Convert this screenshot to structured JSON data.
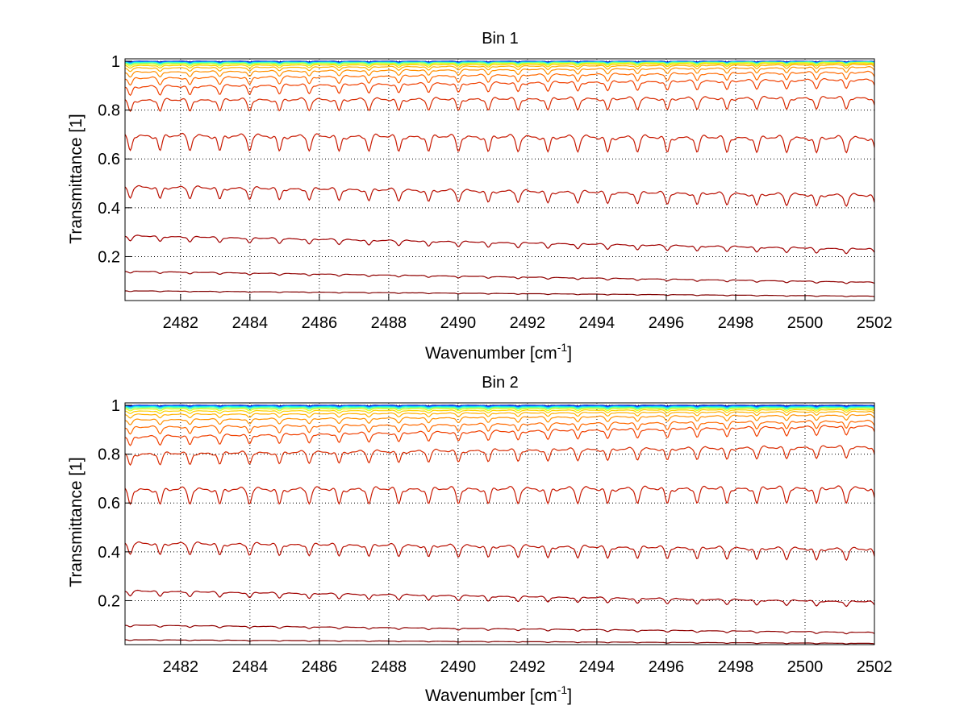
{
  "chart_data": [
    {
      "type": "line",
      "title": "Bin 1",
      "xlabel": "Wavenumber [cm",
      "xlabel_sup": "-1",
      "xlabel_end": "]",
      "ylabel": "Transmittance [1]",
      "xlim": [
        2480.4,
        2502
      ],
      "ylim": [
        0.02,
        1.01
      ],
      "grid": true,
      "xticks": [
        2482,
        2484,
        2486,
        2488,
        2490,
        2492,
        2494,
        2496,
        2498,
        2500,
        2502
      ],
      "yticks": [
        0.2,
        0.4,
        0.6,
        0.8,
        1
      ],
      "yticklabels": [
        "0.2",
        "0.4",
        "0.6",
        "0.8",
        "1"
      ],
      "series": [
        {
          "color": "#00008f",
          "start": 1.0,
          "end": 1.0,
          "depth": 0.003
        },
        {
          "color": "#0030ff",
          "start": 0.999,
          "end": 0.999,
          "depth": 0.003
        },
        {
          "color": "#00a0ff",
          "start": 0.997,
          "end": 0.998,
          "depth": 0.004
        },
        {
          "color": "#20ffdf",
          "start": 0.995,
          "end": 0.997,
          "depth": 0.005
        },
        {
          "color": "#80ff80",
          "start": 0.992,
          "end": 0.996,
          "depth": 0.006
        },
        {
          "color": "#dfff20",
          "start": 0.988,
          "end": 0.994,
          "depth": 0.008
        },
        {
          "color": "#ffd000",
          "start": 0.982,
          "end": 0.991,
          "depth": 0.01
        },
        {
          "color": "#ffb000",
          "start": 0.972,
          "end": 0.986,
          "depth": 0.014
        },
        {
          "color": "#ff9000",
          "start": 0.955,
          "end": 0.975,
          "depth": 0.02
        },
        {
          "color": "#ff6a00",
          "start": 0.93,
          "end": 0.955,
          "depth": 0.028
        },
        {
          "color": "#f04000",
          "start": 0.895,
          "end": 0.925,
          "depth": 0.035
        },
        {
          "color": "#d82a00",
          "start": 0.84,
          "end": 0.85,
          "depth": 0.045
        },
        {
          "color": "#c81800",
          "start": 0.695,
          "end": 0.685,
          "depth": 0.06
        },
        {
          "color": "#b80e00",
          "start": 0.485,
          "end": 0.45,
          "depth": 0.045
        },
        {
          "color": "#a00000",
          "start": 0.285,
          "end": 0.23,
          "depth": 0.02
        },
        {
          "color": "#900000",
          "start": 0.14,
          "end": 0.095,
          "depth": 0.007
        },
        {
          "color": "#800000",
          "start": 0.06,
          "end": 0.038,
          "depth": 0.003
        }
      ]
    },
    {
      "type": "line",
      "title": "Bin 2",
      "xlabel": "Wavenumber [cm",
      "xlabel_sup": "-1",
      "xlabel_end": "]",
      "ylabel": "Transmittance [1]",
      "xlim": [
        2480.4,
        2502
      ],
      "ylim": [
        0.02,
        1.01
      ],
      "grid": true,
      "xticks": [
        2482,
        2484,
        2486,
        2488,
        2490,
        2492,
        2494,
        2496,
        2498,
        2500,
        2502
      ],
      "yticks": [
        0.2,
        0.4,
        0.6,
        0.8,
        1
      ],
      "yticklabels": [
        "0.2",
        "0.4",
        "0.6",
        "0.8",
        "1"
      ],
      "series": [
        {
          "color": "#00008f",
          "start": 1.0,
          "end": 1.0,
          "depth": 0.003
        },
        {
          "color": "#0030ff",
          "start": 0.999,
          "end": 0.998,
          "depth": 0.003
        },
        {
          "color": "#00a0ff",
          "start": 0.997,
          "end": 0.996,
          "depth": 0.004
        },
        {
          "color": "#20ffdf",
          "start": 0.994,
          "end": 0.993,
          "depth": 0.005
        },
        {
          "color": "#80ff80",
          "start": 0.99,
          "end": 0.99,
          "depth": 0.006
        },
        {
          "color": "#dfff20",
          "start": 0.985,
          "end": 0.987,
          "depth": 0.008
        },
        {
          "color": "#ffd000",
          "start": 0.976,
          "end": 0.982,
          "depth": 0.01
        },
        {
          "color": "#ffb000",
          "start": 0.962,
          "end": 0.974,
          "depth": 0.014
        },
        {
          "color": "#ff9000",
          "start": 0.94,
          "end": 0.96,
          "depth": 0.02
        },
        {
          "color": "#ff6a00",
          "start": 0.91,
          "end": 0.935,
          "depth": 0.028
        },
        {
          "color": "#f04000",
          "start": 0.87,
          "end": 0.915,
          "depth": 0.035
        },
        {
          "color": "#d82a00",
          "start": 0.8,
          "end": 0.83,
          "depth": 0.045
        },
        {
          "color": "#c81800",
          "start": 0.655,
          "end": 0.66,
          "depth": 0.06
        },
        {
          "color": "#b80e00",
          "start": 0.435,
          "end": 0.41,
          "depth": 0.045
        },
        {
          "color": "#a00000",
          "start": 0.24,
          "end": 0.195,
          "depth": 0.02
        },
        {
          "color": "#900000",
          "start": 0.1,
          "end": 0.07,
          "depth": 0.007
        },
        {
          "color": "#800000",
          "start": 0.04,
          "end": 0.025,
          "depth": 0.003
        }
      ]
    }
  ]
}
